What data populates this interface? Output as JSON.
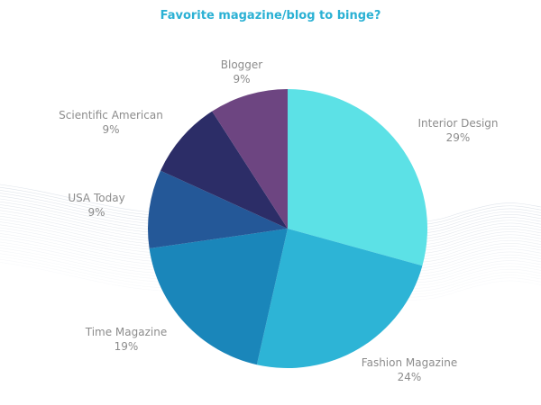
{
  "chart_data": {
    "type": "pie",
    "title": "Favorite magazine/blog to binge?",
    "slices": [
      {
        "label": "Interior Design",
        "value": 29,
        "value_label": "29%",
        "color": "#5ce1e6"
      },
      {
        "label": "Fashion Magazine",
        "value": 24,
        "value_label": "24%",
        "color": "#2db4d6"
      },
      {
        "label": "Time Magazine",
        "value": 19,
        "value_label": "19%",
        "color": "#1a86ba"
      },
      {
        "label": "USA Today",
        "value": 9,
        "value_label": "9%",
        "color": "#245898"
      },
      {
        "label": "Scientific American",
        "value": 9,
        "value_label": "9%",
        "color": "#2c2d67"
      },
      {
        "label": "Blogger",
        "value": 9,
        "value_label": "9%",
        "color": "#6d4581"
      }
    ],
    "start": "top",
    "direction": "clockwise",
    "legend": "none"
  }
}
